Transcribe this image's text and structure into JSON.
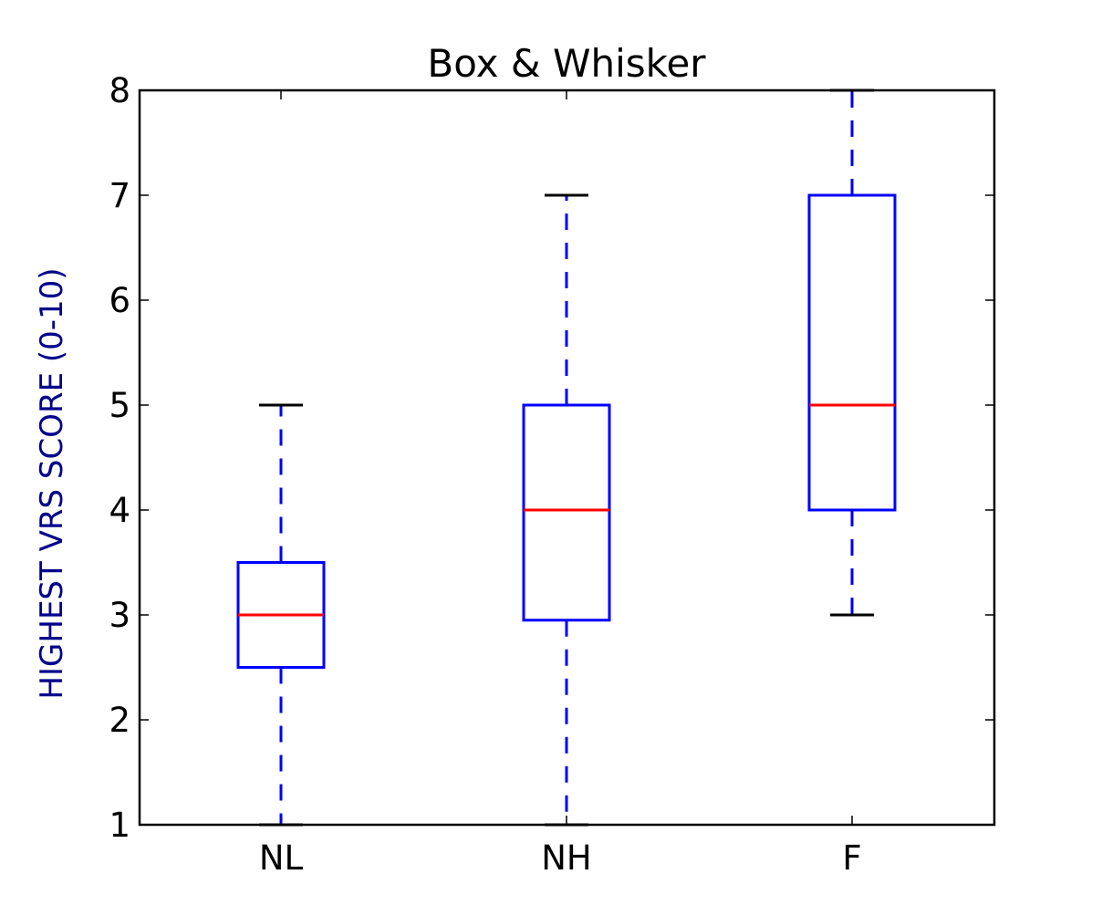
{
  "chart_data": {
    "type": "boxplot",
    "title": "Box & Whisker",
    "xlabel": "",
    "ylabel": "HIGHEST VRS SCORE (0-10)",
    "ylim": [
      1,
      8
    ],
    "yticks": [
      1,
      2,
      3,
      4,
      5,
      6,
      7,
      8
    ],
    "categories": [
      "NL",
      "NH",
      "F"
    ],
    "boxes": [
      {
        "category": "NL",
        "whisker_low": 1,
        "q1": 2.5,
        "median": 3,
        "q3": 3.5,
        "whisker_high": 5
      },
      {
        "category": "NH",
        "whisker_low": 1,
        "q1": 2.95,
        "median": 4,
        "q3": 5,
        "whisker_high": 7
      },
      {
        "category": "F",
        "whisker_low": 3,
        "q1": 4,
        "median": 5,
        "q3": 7,
        "whisker_high": 8
      }
    ],
    "grid": false,
    "legend": "none",
    "colors": {
      "box": "#0000ff",
      "whisker": "#0000ff",
      "median": "#ff0000",
      "cap": "#000000",
      "axes": "#000000",
      "ylabel": "#00008b"
    }
  }
}
